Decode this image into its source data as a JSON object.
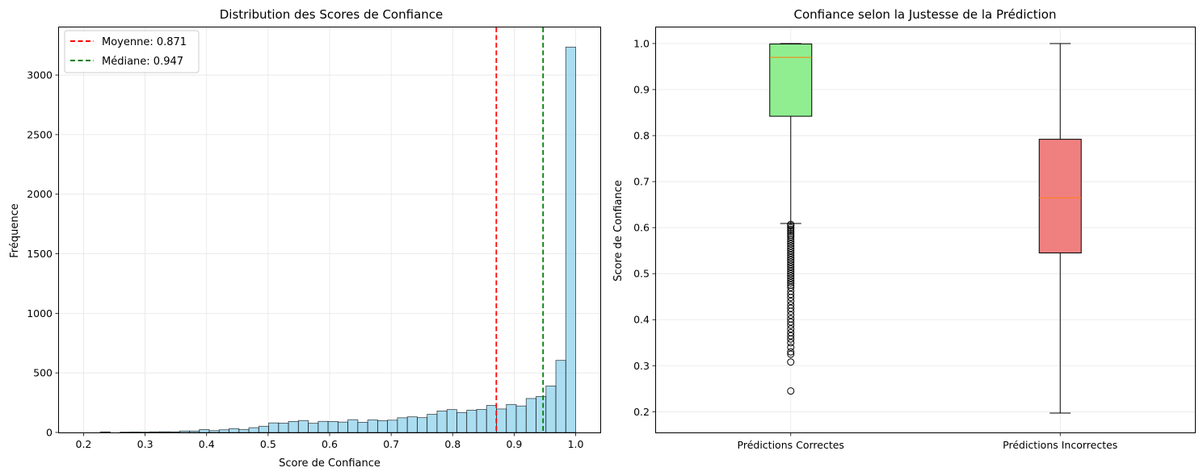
{
  "chart_data": [
    {
      "type": "histogram",
      "title": "Distribution des Scores de Confiance",
      "xlabel": "Score de Confiance",
      "ylabel": "Fréquence",
      "xlim": [
        0.16,
        1.04
      ],
      "ylim": [
        0,
        3400
      ],
      "xticks": [
        "0.2",
        "0.3",
        "0.4",
        "0.5",
        "0.6",
        "0.7",
        "0.8",
        "0.9",
        "1.0"
      ],
      "yticks": [
        "0",
        "500",
        "1000",
        "1500",
        "2000",
        "2500",
        "3000"
      ],
      "grid": true,
      "bar_color": "#87ceeb",
      "bins": [
        {
          "x0": 0.2111,
          "x1": 0.2272,
          "count": 0
        },
        {
          "x0": 0.2272,
          "x1": 0.2433,
          "count": 5
        },
        {
          "x0": 0.2433,
          "x1": 0.2594,
          "count": 0
        },
        {
          "x0": 0.2594,
          "x1": 0.2755,
          "count": 3
        },
        {
          "x0": 0.2755,
          "x1": 0.2916,
          "count": 4
        },
        {
          "x0": 0.2916,
          "x1": 0.3077,
          "count": 3
        },
        {
          "x0": 0.3077,
          "x1": 0.3238,
          "count": 5
        },
        {
          "x0": 0.3238,
          "x1": 0.3399,
          "count": 6
        },
        {
          "x0": 0.3399,
          "x1": 0.356,
          "count": 5
        },
        {
          "x0": 0.356,
          "x1": 0.3721,
          "count": 12
        },
        {
          "x0": 0.3721,
          "x1": 0.3882,
          "count": 12
        },
        {
          "x0": 0.3882,
          "x1": 0.4043,
          "count": 24
        },
        {
          "x0": 0.4043,
          "x1": 0.4204,
          "count": 15
        },
        {
          "x0": 0.4204,
          "x1": 0.4365,
          "count": 22
        },
        {
          "x0": 0.4365,
          "x1": 0.4526,
          "count": 32
        },
        {
          "x0": 0.4526,
          "x1": 0.4687,
          "count": 25
        },
        {
          "x0": 0.4687,
          "x1": 0.4848,
          "count": 40
        },
        {
          "x0": 0.4848,
          "x1": 0.5009,
          "count": 52
        },
        {
          "x0": 0.5009,
          "x1": 0.517,
          "count": 80
        },
        {
          "x0": 0.517,
          "x1": 0.5331,
          "count": 78
        },
        {
          "x0": 0.5331,
          "x1": 0.5492,
          "count": 92
        },
        {
          "x0": 0.5492,
          "x1": 0.5653,
          "count": 100
        },
        {
          "x0": 0.5653,
          "x1": 0.5814,
          "count": 77
        },
        {
          "x0": 0.5814,
          "x1": 0.5975,
          "count": 93
        },
        {
          "x0": 0.5975,
          "x1": 0.6136,
          "count": 92
        },
        {
          "x0": 0.6136,
          "x1": 0.6297,
          "count": 87
        },
        {
          "x0": 0.6297,
          "x1": 0.6458,
          "count": 107
        },
        {
          "x0": 0.6458,
          "x1": 0.6619,
          "count": 85
        },
        {
          "x0": 0.6619,
          "x1": 0.678,
          "count": 105
        },
        {
          "x0": 0.678,
          "x1": 0.6941,
          "count": 99
        },
        {
          "x0": 0.6941,
          "x1": 0.7102,
          "count": 103
        },
        {
          "x0": 0.7102,
          "x1": 0.7263,
          "count": 123
        },
        {
          "x0": 0.7263,
          "x1": 0.7424,
          "count": 131
        },
        {
          "x0": 0.7424,
          "x1": 0.7585,
          "count": 124
        },
        {
          "x0": 0.7585,
          "x1": 0.7746,
          "count": 152
        },
        {
          "x0": 0.7746,
          "x1": 0.7907,
          "count": 180
        },
        {
          "x0": 0.7907,
          "x1": 0.8068,
          "count": 192
        },
        {
          "x0": 0.8068,
          "x1": 0.8229,
          "count": 167
        },
        {
          "x0": 0.8229,
          "x1": 0.839,
          "count": 187
        },
        {
          "x0": 0.839,
          "x1": 0.8551,
          "count": 193
        },
        {
          "x0": 0.8551,
          "x1": 0.8712,
          "count": 227
        },
        {
          "x0": 0.8712,
          "x1": 0.8873,
          "count": 197
        },
        {
          "x0": 0.8873,
          "x1": 0.9034,
          "count": 235
        },
        {
          "x0": 0.9034,
          "x1": 0.9195,
          "count": 222
        },
        {
          "x0": 0.9195,
          "x1": 0.9356,
          "count": 285
        },
        {
          "x0": 0.9356,
          "x1": 0.9517,
          "count": 302
        },
        {
          "x0": 0.9517,
          "x1": 0.9678,
          "count": 390
        },
        {
          "x0": 0.9678,
          "x1": 0.9839,
          "count": 605
        },
        {
          "x0": 0.9839,
          "x1": 1.0,
          "count": 3235
        }
      ],
      "vlines": [
        {
          "label": "Moyenne: 0.871",
          "x": 0.871,
          "color": "#ff0000"
        },
        {
          "label": "Médiane: 0.947",
          "x": 0.947,
          "color": "#008000"
        }
      ],
      "legend": "top-left"
    },
    {
      "type": "boxplot",
      "title": "Confiance selon la Justesse de la Prédiction",
      "ylabel": "Score de Confiance",
      "ylim": [
        0.155,
        1.035
      ],
      "yticks": [
        "0.2",
        "0.3",
        "0.4",
        "0.5",
        "0.6",
        "0.7",
        "0.8",
        "0.9",
        "1.0"
      ],
      "categories": [
        "Prédictions Correctes",
        "Prédictions Incorrectes"
      ],
      "grid": true,
      "boxes": [
        {
          "name": "Prédictions Correctes",
          "color": "#90ee90",
          "whisker_low": 0.609,
          "q1": 0.842,
          "median": 0.97,
          "q3": 0.999,
          "whisker_high": 1.0,
          "outliers": [
            0.607,
            0.604,
            0.6,
            0.596,
            0.592,
            0.588,
            0.584,
            0.58,
            0.575,
            0.57,
            0.565,
            0.56,
            0.555,
            0.55,
            0.545,
            0.54,
            0.535,
            0.53,
            0.525,
            0.52,
            0.515,
            0.51,
            0.505,
            0.5,
            0.495,
            0.49,
            0.485,
            0.48,
            0.475,
            0.47,
            0.462,
            0.455,
            0.448,
            0.44,
            0.432,
            0.425,
            0.418,
            0.41,
            0.402,
            0.395,
            0.388,
            0.38,
            0.372,
            0.365,
            0.358,
            0.35,
            0.34,
            0.33,
            0.325,
            0.308,
            0.245
          ]
        },
        {
          "name": "Prédictions Incorrectes",
          "color": "#f08080",
          "whisker_low": 0.197,
          "q1": 0.545,
          "median": 0.665,
          "q3": 0.792,
          "whisker_high": 1.0,
          "outliers": []
        }
      ],
      "median_color": "#ff7f0e"
    }
  ]
}
